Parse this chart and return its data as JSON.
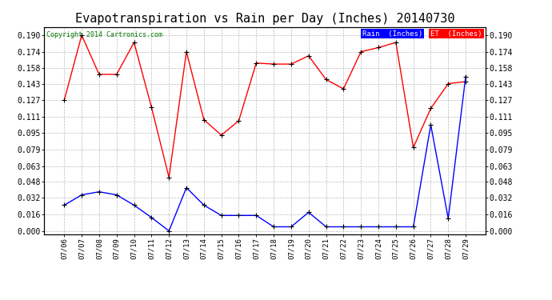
{
  "title": "Evapotranspiration vs Rain per Day (Inches) 20140730",
  "copyright": "Copyright 2014 Cartronics.com",
  "dates": [
    "07/06",
    "07/07",
    "07/08",
    "07/09",
    "07/10",
    "07/11",
    "07/12",
    "07/13",
    "07/14",
    "07/15",
    "07/16",
    "07/17",
    "07/18",
    "07/19",
    "07/20",
    "07/21",
    "07/22",
    "07/23",
    "07/24",
    "07/25",
    "07/26",
    "07/27",
    "07/28",
    "07/29"
  ],
  "rain": [
    0.025,
    0.035,
    0.038,
    0.035,
    0.025,
    0.013,
    0.0,
    0.042,
    0.025,
    0.015,
    0.015,
    0.015,
    0.004,
    0.004,
    0.018,
    0.004,
    0.004,
    0.004,
    0.004,
    0.004,
    0.004,
    0.103,
    0.012,
    0.15
  ],
  "et": [
    0.127,
    0.19,
    0.152,
    0.152,
    0.183,
    0.12,
    0.052,
    0.174,
    0.108,
    0.093,
    0.107,
    0.163,
    0.162,
    0.162,
    0.17,
    0.147,
    0.138,
    0.174,
    0.178,
    0.183,
    0.081,
    0.119,
    0.143,
    0.145
  ],
  "ylim_min": -0.003,
  "ylim_max": 0.198,
  "yticks": [
    0.0,
    0.016,
    0.032,
    0.048,
    0.063,
    0.079,
    0.095,
    0.111,
    0.127,
    0.143,
    0.158,
    0.174,
    0.19
  ],
  "rain_color": "#0000ff",
  "et_color": "#ff0000",
  "marker_color": "#000000",
  "bg_color": "#ffffff",
  "grid_color": "#bbbbbb",
  "title_fontsize": 11,
  "legend_rain_bg": "#0000ff",
  "legend_et_bg": "#ff0000",
  "legend_rain_text": "Rain  (Inches)",
  "legend_et_text": "ET  (Inches)",
  "copyright_color": "#007700"
}
